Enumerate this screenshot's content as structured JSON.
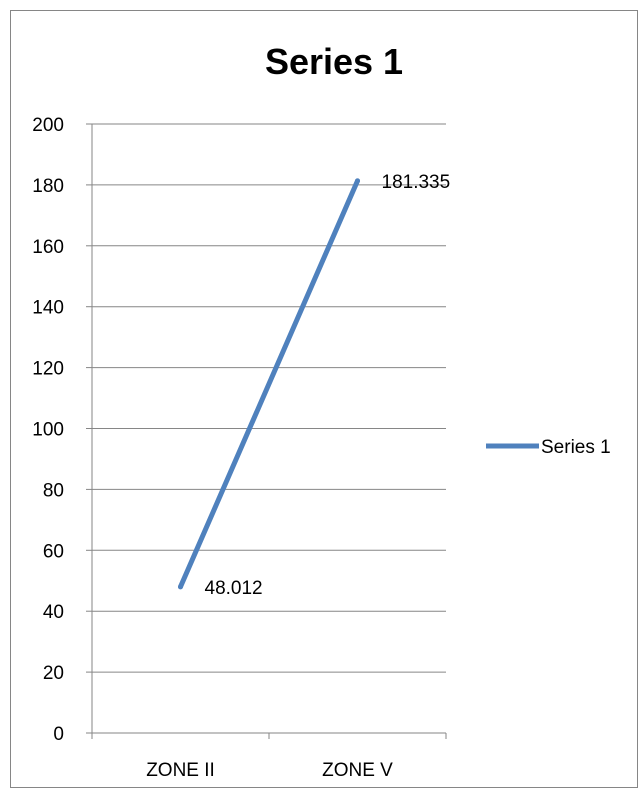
{
  "chart_data": {
    "type": "line",
    "title": "Series 1",
    "categories": [
      "ZONE II",
      "ZONE V"
    ],
    "series": [
      {
        "name": "Series 1",
        "values": [
          48.012,
          181.335
        ],
        "color": "#4F81BD"
      }
    ],
    "data_labels": [
      "48.012",
      "181.335"
    ],
    "ylim": [
      0,
      200
    ],
    "y_ticks": [
      0,
      20,
      40,
      60,
      80,
      100,
      120,
      140,
      160,
      180,
      200
    ],
    "grid": true,
    "legend_position": "right"
  }
}
